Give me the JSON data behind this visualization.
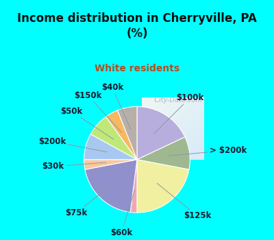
{
  "title": "Income distribution in Cherryville, PA\n(%)",
  "subtitle": "White residents",
  "title_color": "#111111",
  "subtitle_color": "#b05020",
  "bg_cyan": "#00ffff",
  "bg_chart_tl": "#e8f5f0",
  "bg_chart_br": "#c8e8f8",
  "watermark": "  City-Data.com",
  "labels": [
    "$100k",
    "> $200k",
    "$125k",
    "$60k",
    "$75k",
    "$30k",
    "$200k",
    "$50k",
    "$150k",
    "$40k"
  ],
  "sizes": [
    18,
    10,
    22,
    2,
    20,
    3,
    8,
    7,
    4,
    6
  ],
  "colors": [
    "#b8aedd",
    "#a0b890",
    "#f0f0a0",
    "#f0a8b0",
    "#9090cc",
    "#f8c8a0",
    "#a8c8f0",
    "#c0e878",
    "#f8b860",
    "#b8b0a8"
  ],
  "start_angle": 90,
  "label_fontsize": 8.5
}
